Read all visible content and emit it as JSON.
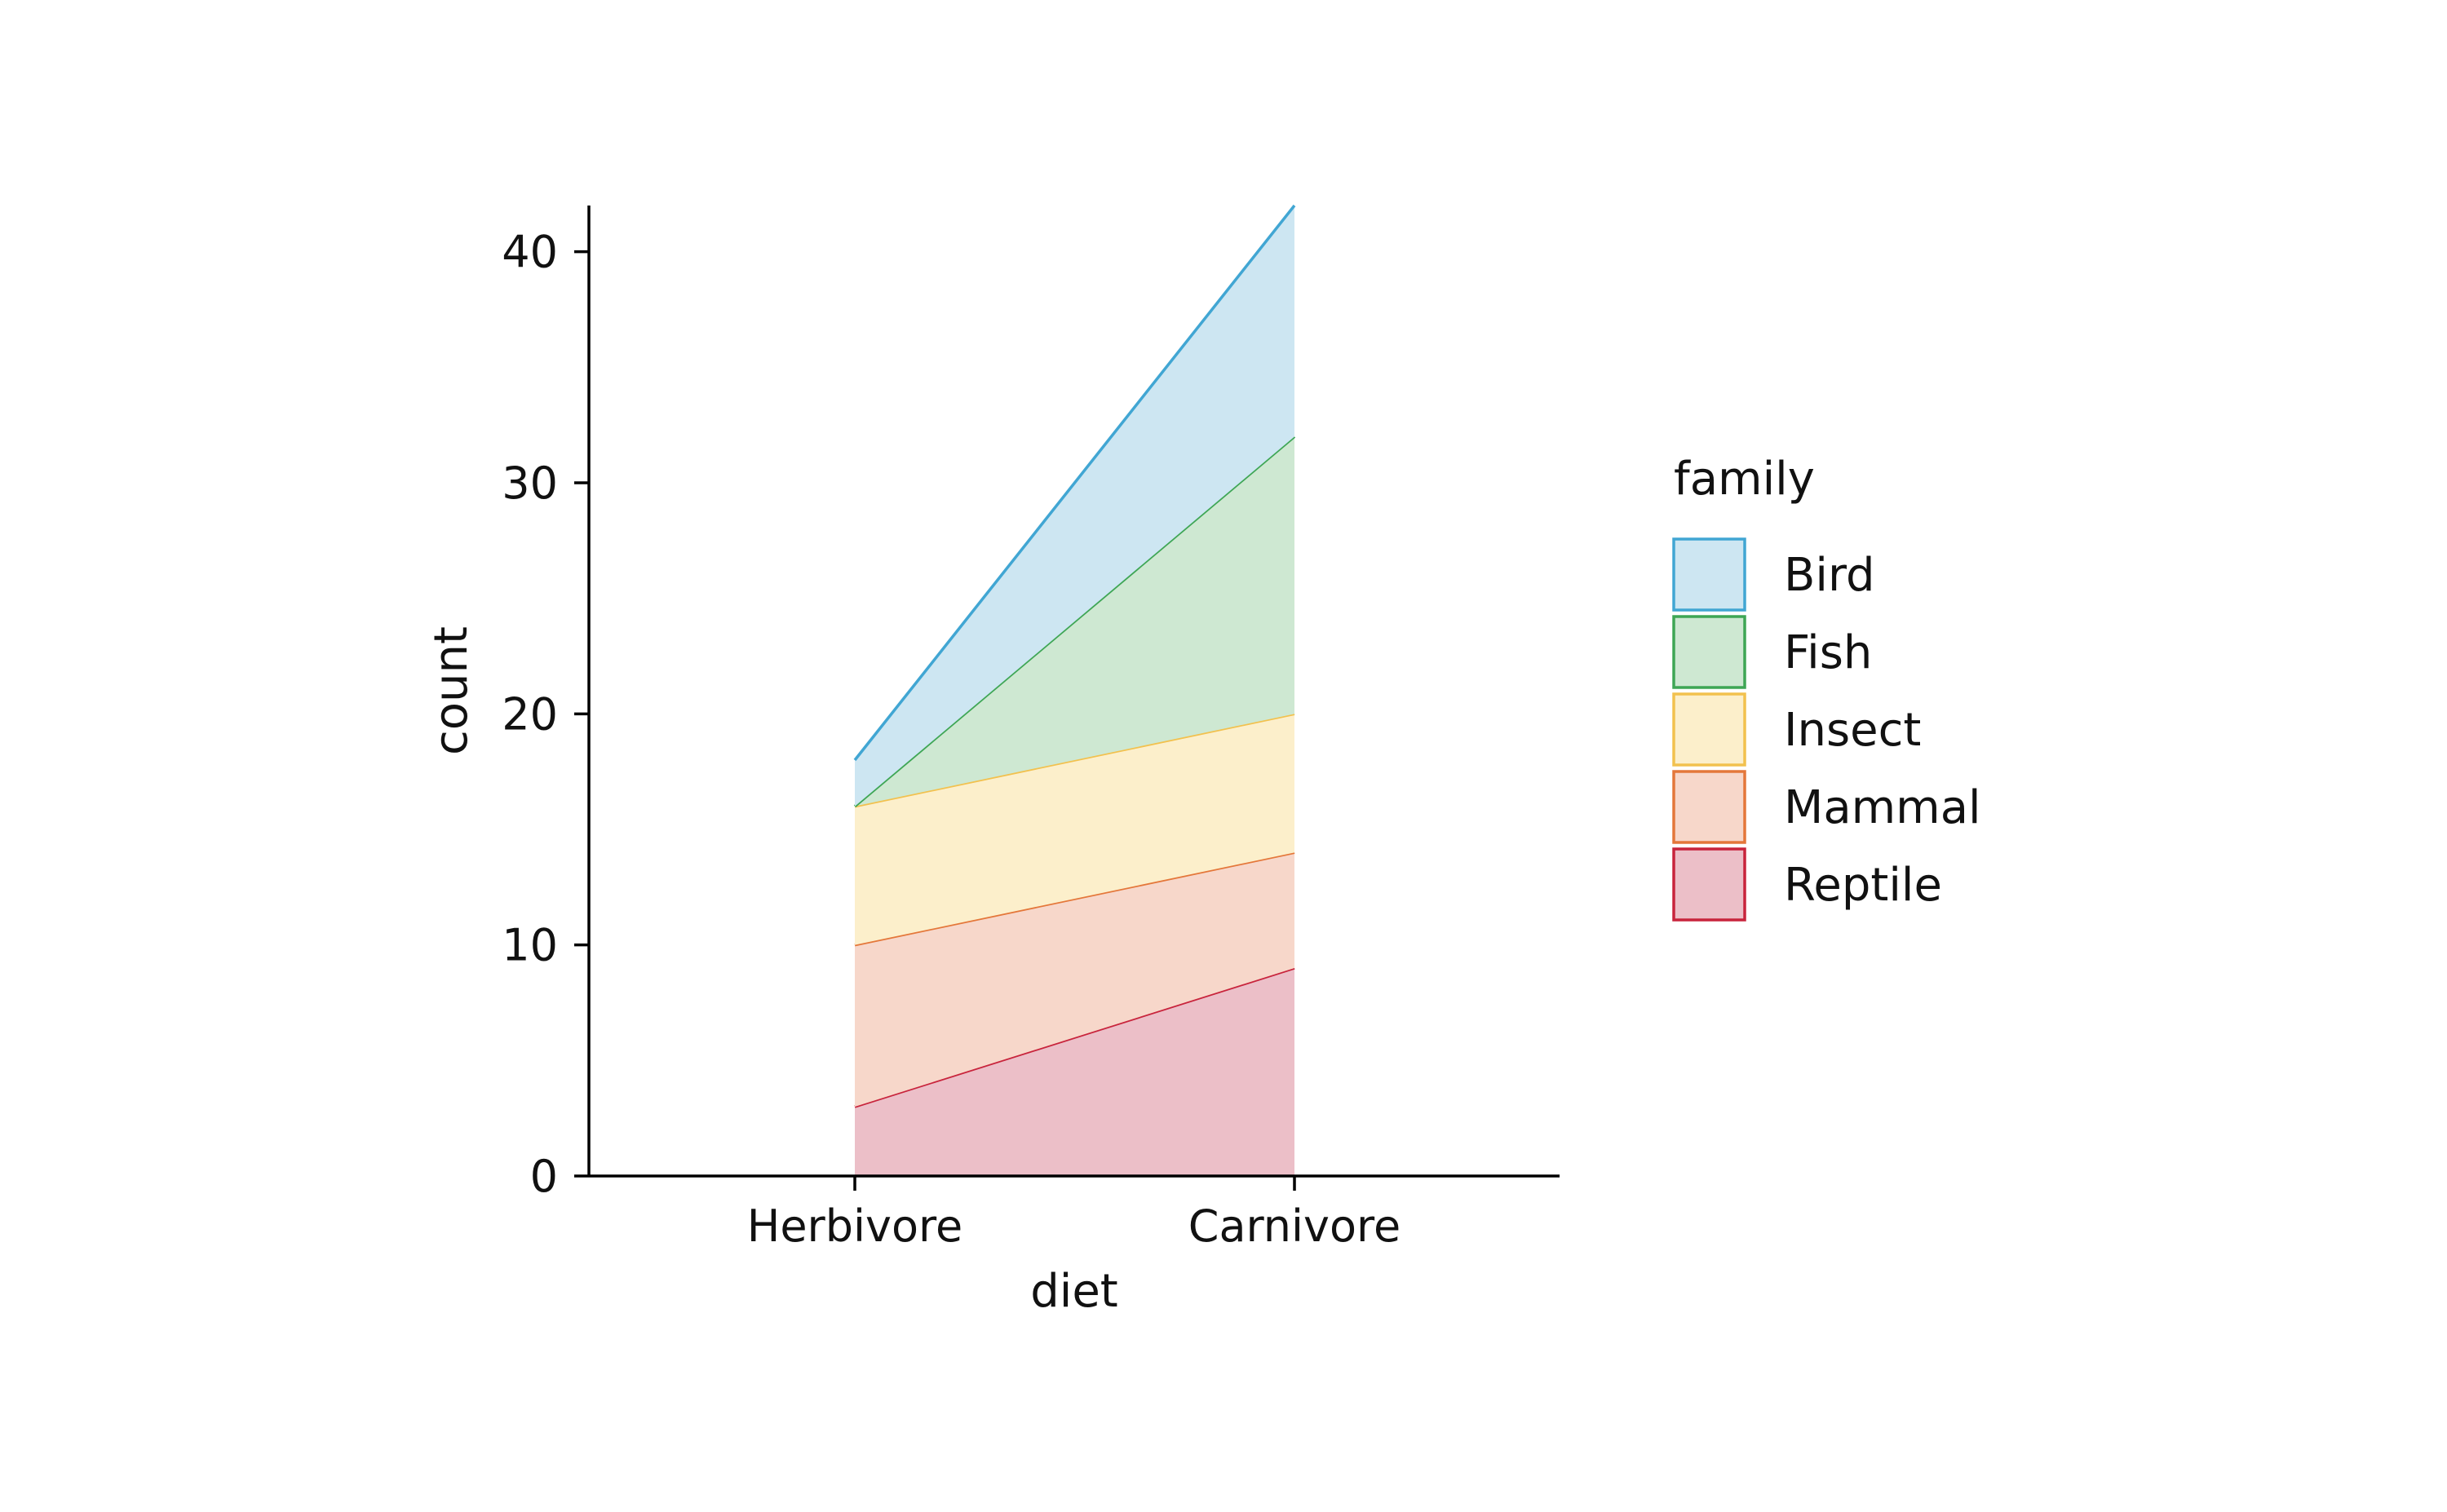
{
  "chart_data": {
    "type": "area",
    "stacked": true,
    "categories": [
      "Herbivore",
      "Carnivore"
    ],
    "series": [
      {
        "name": "Reptile",
        "values": [
          3,
          9
        ],
        "color": "#c8243c",
        "fill": "#ecbfc8"
      },
      {
        "name": "Mammal",
        "values": [
          7,
          5
        ],
        "color": "#e4773a",
        "fill": "#f7d7ca"
      },
      {
        "name": "Insect",
        "values": [
          6,
          6
        ],
        "color": "#f2c14e",
        "fill": "#fcefcb"
      },
      {
        "name": "Fish",
        "values": [
          0,
          12
        ],
        "color": "#3ea655",
        "fill": "#cee8d2"
      },
      {
        "name": "Bird",
        "values": [
          2,
          10
        ],
        "color": "#41a6d3",
        "fill": "#cde6f2"
      }
    ],
    "xlabel": "diet",
    "ylabel": "count",
    "ylim": [
      0,
      42
    ],
    "yticks": [
      0,
      10,
      20,
      30,
      40
    ],
    "grid": false,
    "legend": {
      "title": "family",
      "placement": "right",
      "order": [
        "Bird",
        "Fish",
        "Insect",
        "Mammal",
        "Reptile"
      ]
    }
  }
}
